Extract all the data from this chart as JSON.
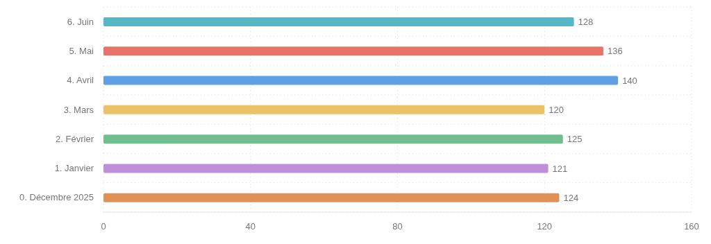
{
  "chart_data": {
    "type": "bar",
    "orientation": "horizontal",
    "categories": [
      "6. Juin",
      "5. Mai",
      "4. Avril",
      "3. Mars",
      "2. Février",
      "1. Janvier",
      "0. Décembre 2025"
    ],
    "values": [
      128,
      136,
      140,
      120,
      125,
      121,
      124
    ],
    "colors": [
      "#52b8c8",
      "#ea7369",
      "#5e9fe6",
      "#e9c26a",
      "#72bd8d",
      "#bf8ed9",
      "#df9156"
    ],
    "xlim": [
      0,
      160
    ],
    "xticks": [
      0,
      40,
      80,
      120,
      160
    ],
    "grid": true,
    "data_labels": true
  }
}
